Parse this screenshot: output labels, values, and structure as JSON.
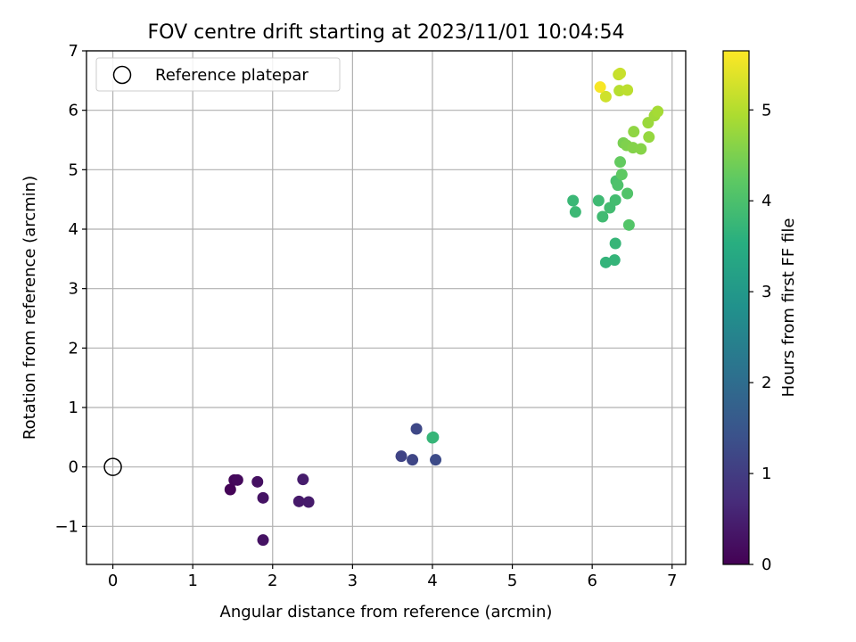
{
  "chart_data": {
    "type": "scatter",
    "title": "FOV centre drift starting at 2023/11/01 10:04:54",
    "xlabel": "Angular distance from reference (arcmin)",
    "ylabel": "Rotation from reference (arcmin)",
    "xlim": [
      -0.33,
      7.17
    ],
    "ylim": [
      -1.64,
      7.0
    ],
    "xticks": [
      0,
      1,
      2,
      3,
      4,
      5,
      6,
      7
    ],
    "yticks": [
      -1,
      0,
      1,
      2,
      3,
      4,
      5,
      6,
      7
    ],
    "xtick_labels": [
      "0",
      "1",
      "2",
      "3",
      "4",
      "5",
      "6",
      "7"
    ],
    "ytick_labels": [
      "−1",
      "0",
      "1",
      "2",
      "3",
      "4",
      "5",
      "6",
      "7"
    ],
    "grid": true,
    "legend": {
      "placement": "top-left",
      "label": "Reference platepar"
    },
    "reference_point": {
      "x": 0,
      "y": 0
    },
    "colorbar": {
      "label": "Hours from first FF file",
      "colormap": "viridis",
      "range": [
        0,
        5.65
      ],
      "ticks": [
        0,
        1,
        2,
        3,
        4,
        5
      ],
      "tick_labels": [
        "0",
        "1",
        "2",
        "3",
        "4",
        "5"
      ]
    },
    "points": [
      {
        "x": 1.47,
        "y": -0.38,
        "c": 0.05
      },
      {
        "x": 1.52,
        "y": -0.22,
        "c": 0.1
      },
      {
        "x": 1.56,
        "y": -0.22,
        "c": 0.15
      },
      {
        "x": 1.81,
        "y": -0.25,
        "c": 0.25
      },
      {
        "x": 1.88,
        "y": -0.52,
        "c": 0.3
      },
      {
        "x": 1.88,
        "y": -1.23,
        "c": 0.28
      },
      {
        "x": 2.33,
        "y": -0.58,
        "c": 0.4
      },
      {
        "x": 2.38,
        "y": -0.21,
        "c": 0.45
      },
      {
        "x": 2.45,
        "y": -0.59,
        "c": 0.42
      },
      {
        "x": 3.61,
        "y": 0.18,
        "c": 1.15
      },
      {
        "x": 3.75,
        "y": 0.12,
        "c": 1.2
      },
      {
        "x": 3.8,
        "y": 0.64,
        "c": 1.25
      },
      {
        "x": 4.04,
        "y": 0.12,
        "c": 1.3
      },
      {
        "x": 4.01,
        "y": 0.5,
        "c": 3.7
      },
      {
        "x": 4.0,
        "y": 0.49,
        "c": 3.75
      },
      {
        "x": 5.76,
        "y": 4.48,
        "c": 3.8
      },
      {
        "x": 5.79,
        "y": 4.29,
        "c": 3.82
      },
      {
        "x": 6.08,
        "y": 4.48,
        "c": 3.85
      },
      {
        "x": 6.13,
        "y": 4.21,
        "c": 3.88
      },
      {
        "x": 6.17,
        "y": 3.44,
        "c": 3.7
      },
      {
        "x": 6.28,
        "y": 3.48,
        "c": 3.72
      },
      {
        "x": 6.29,
        "y": 3.76,
        "c": 3.75
      },
      {
        "x": 6.22,
        "y": 4.36,
        "c": 3.9
      },
      {
        "x": 6.29,
        "y": 4.49,
        "c": 3.92
      },
      {
        "x": 6.3,
        "y": 4.81,
        "c": 4.0
      },
      {
        "x": 6.32,
        "y": 4.74,
        "c": 4.05
      },
      {
        "x": 6.44,
        "y": 4.6,
        "c": 4.1
      },
      {
        "x": 6.46,
        "y": 4.07,
        "c": 4.12
      },
      {
        "x": 6.37,
        "y": 4.92,
        "c": 4.25
      },
      {
        "x": 6.35,
        "y": 5.13,
        "c": 4.3
      },
      {
        "x": 6.39,
        "y": 5.45,
        "c": 4.5
      },
      {
        "x": 6.43,
        "y": 5.41,
        "c": 4.55
      },
      {
        "x": 6.51,
        "y": 5.37,
        "c": 4.6
      },
      {
        "x": 6.61,
        "y": 5.35,
        "c": 4.62
      },
      {
        "x": 6.52,
        "y": 5.64,
        "c": 4.7
      },
      {
        "x": 6.71,
        "y": 5.55,
        "c": 4.75
      },
      {
        "x": 6.7,
        "y": 5.79,
        "c": 4.8
      },
      {
        "x": 6.78,
        "y": 5.91,
        "c": 4.85
      },
      {
        "x": 6.82,
        "y": 5.98,
        "c": 4.9
      },
      {
        "x": 6.34,
        "y": 6.33,
        "c": 5.05
      },
      {
        "x": 6.44,
        "y": 6.34,
        "c": 5.1
      },
      {
        "x": 6.33,
        "y": 6.6,
        "c": 5.15
      },
      {
        "x": 6.35,
        "y": 6.62,
        "c": 5.2
      },
      {
        "x": 6.17,
        "y": 6.23,
        "c": 5.25
      },
      {
        "x": 6.1,
        "y": 6.39,
        "c": 5.6
      }
    ]
  }
}
